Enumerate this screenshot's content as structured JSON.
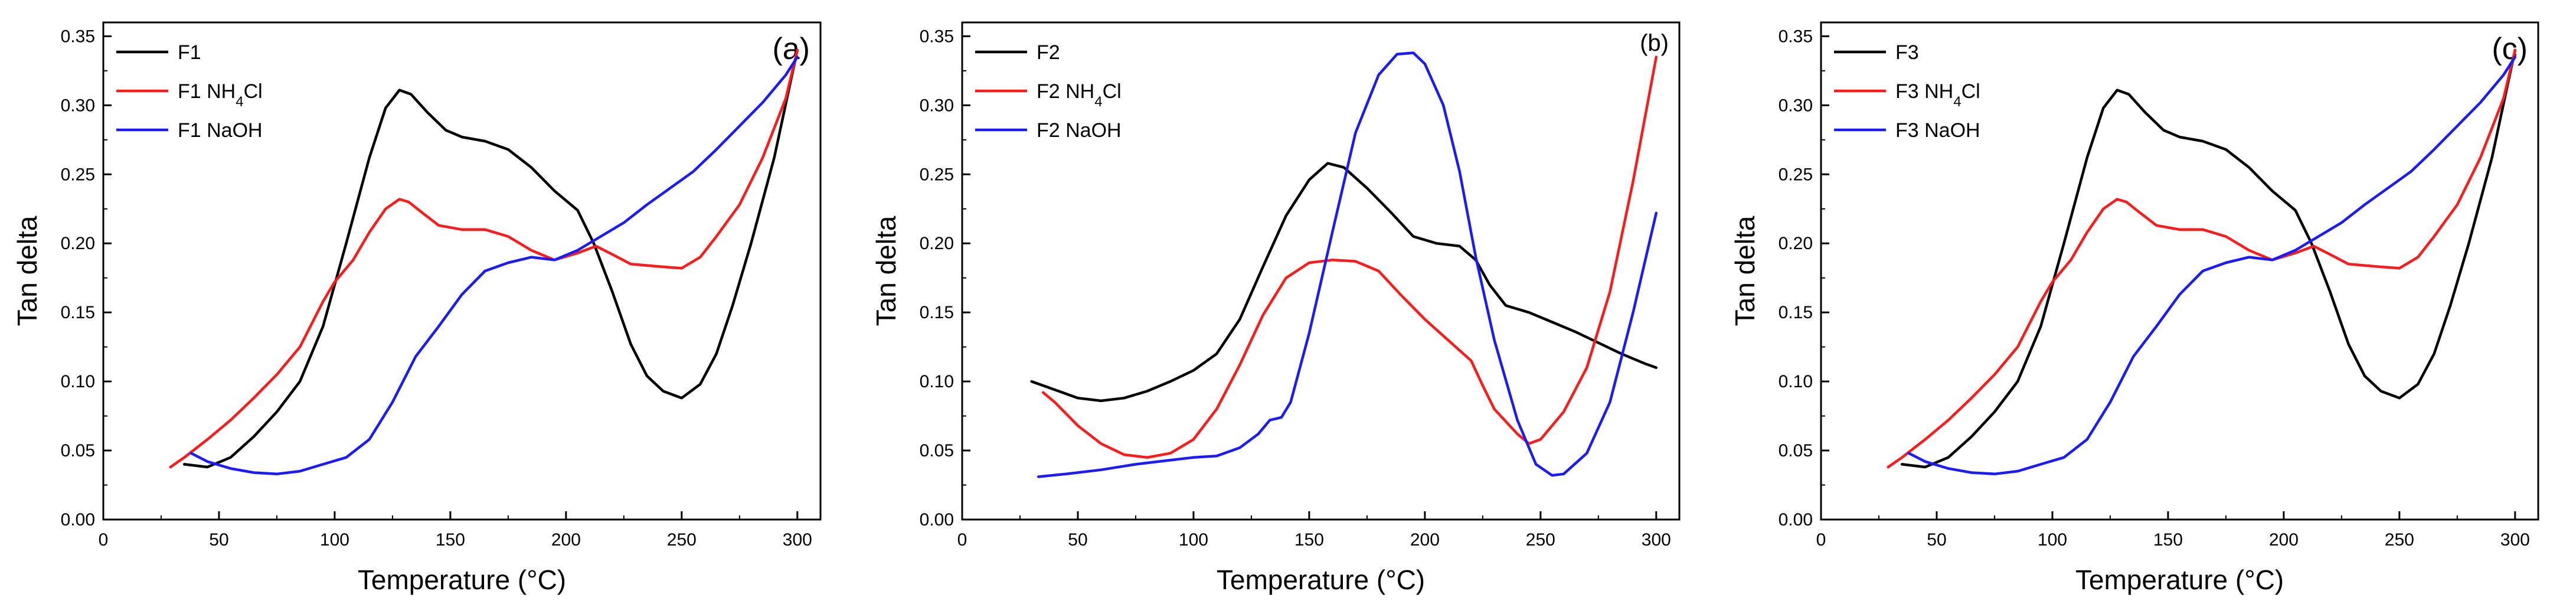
{
  "chart_data": [
    {
      "type": "line",
      "panel_label": "(a)",
      "xlabel": "Temperature (°C)",
      "ylabel": "Tan delta",
      "xlim": [
        0,
        310
      ],
      "ylim": [
        0,
        0.36
      ],
      "xticks": [
        0,
        50,
        100,
        150,
        200,
        250,
        300
      ],
      "xtick_labels": [
        "0",
        "50",
        "100",
        "150",
        "200",
        "250",
        "300"
      ],
      "yticks": [
        0,
        0.05,
        0.1,
        0.15,
        0.2,
        0.25,
        0.3,
        0.35
      ],
      "ytick_labels": [
        "0.00",
        "0.05",
        "0.10",
        "0.15",
        "0.20",
        "0.25",
        "0.30",
        "0.35"
      ],
      "legend_position": "top-left",
      "series": [
        {
          "name": "F1",
          "name_main": "F1",
          "name_sub": "",
          "name_tail": "",
          "color": "#000000",
          "x": [
            35,
            45,
            55,
            65,
            75,
            85,
            95,
            105,
            115,
            122,
            128,
            133,
            140,
            148,
            155,
            165,
            175,
            185,
            195,
            205,
            212,
            220,
            228,
            235,
            242,
            250,
            258,
            265,
            272,
            280,
            290,
            300
          ],
          "y": [
            0.04,
            0.038,
            0.045,
            0.06,
            0.078,
            0.1,
            0.14,
            0.2,
            0.262,
            0.298,
            0.311,
            0.308,
            0.295,
            0.282,
            0.277,
            0.274,
            0.268,
            0.255,
            0.238,
            0.224,
            0.2,
            0.165,
            0.127,
            0.104,
            0.093,
            0.088,
            0.098,
            0.12,
            0.155,
            0.2,
            0.262,
            0.34
          ]
        },
        {
          "name": "F1 NH4Cl",
          "name_main": "F1 NH",
          "name_sub": "4",
          "name_tail": "Cl",
          "color": "#ff1a1a",
          "x": [
            29,
            35,
            45,
            55,
            65,
            75,
            85,
            95,
            100,
            108,
            115,
            122,
            128,
            132,
            138,
            145,
            155,
            165,
            175,
            185,
            195,
            205,
            213,
            220,
            228,
            235,
            242,
            250,
            258,
            265,
            275,
            285,
            295,
            300
          ],
          "y": [
            0.038,
            0.045,
            0.058,
            0.072,
            0.088,
            0.105,
            0.125,
            0.158,
            0.172,
            0.188,
            0.208,
            0.225,
            0.232,
            0.23,
            0.222,
            0.213,
            0.21,
            0.21,
            0.205,
            0.195,
            0.188,
            0.193,
            0.198,
            0.192,
            0.185,
            0.184,
            0.183,
            0.182,
            0.19,
            0.205,
            0.228,
            0.262,
            0.305,
            0.34
          ]
        },
        {
          "name": "F1 NaOH",
          "name_main": "F1 NaOH",
          "name_sub": "",
          "name_tail": "",
          "color": "#1a1aff",
          "x": [
            38,
            45,
            55,
            65,
            75,
            85,
            95,
            105,
            115,
            125,
            135,
            145,
            155,
            165,
            175,
            185,
            195,
            205,
            215,
            225,
            235,
            245,
            255,
            265,
            275,
            285,
            295,
            300
          ],
          "y": [
            0.048,
            0.042,
            0.037,
            0.034,
            0.033,
            0.035,
            0.04,
            0.045,
            0.058,
            0.085,
            0.118,
            0.14,
            0.163,
            0.18,
            0.186,
            0.19,
            0.188,
            0.195,
            0.205,
            0.215,
            0.228,
            0.24,
            0.252,
            0.268,
            0.285,
            0.302,
            0.322,
            0.335
          ]
        }
      ]
    },
    {
      "type": "line",
      "panel_label": "(b)",
      "xlabel": "Temperature (°C)",
      "ylabel": "Tan delta",
      "xlim": [
        0,
        310
      ],
      "ylim": [
        0,
        0.36
      ],
      "xticks": [
        0,
        50,
        100,
        150,
        200,
        250,
        300
      ],
      "xtick_labels": [
        "0",
        "50",
        "100",
        "150",
        "200",
        "250",
        "300"
      ],
      "yticks": [
        0,
        0.05,
        0.1,
        0.15,
        0.2,
        0.25,
        0.3,
        0.35
      ],
      "ytick_labels": [
        "0.00",
        "0.05",
        "0.10",
        "0.15",
        "0.20",
        "0.25",
        "0.30",
        "0.35"
      ],
      "legend_position": "top-left",
      "series": [
        {
          "name": "F2",
          "name_main": "F2",
          "name_sub": "",
          "name_tail": "",
          "color": "#000000",
          "x": [
            30,
            40,
            50,
            60,
            70,
            80,
            90,
            100,
            110,
            120,
            130,
            140,
            150,
            158,
            165,
            175,
            185,
            195,
            205,
            215,
            222,
            228,
            235,
            245,
            255,
            265,
            275,
            285,
            295,
            300
          ],
          "y": [
            0.1,
            0.094,
            0.088,
            0.086,
            0.088,
            0.093,
            0.1,
            0.108,
            0.12,
            0.145,
            0.183,
            0.22,
            0.246,
            0.258,
            0.255,
            0.24,
            0.223,
            0.205,
            0.2,
            0.198,
            0.188,
            0.17,
            0.155,
            0.15,
            0.143,
            0.136,
            0.128,
            0.12,
            0.113,
            0.11
          ]
        },
        {
          "name": "F2 NH4Cl",
          "name_main": "F2 NH",
          "name_sub": "4",
          "name_tail": "Cl",
          "color": "#ff1a1a",
          "x": [
            35,
            40,
            50,
            60,
            70,
            80,
            90,
            100,
            110,
            120,
            130,
            140,
            150,
            160,
            170,
            180,
            190,
            200,
            210,
            220,
            225,
            230,
            240,
            245,
            250,
            260,
            270,
            280,
            290,
            300
          ],
          "y": [
            0.092,
            0.085,
            0.068,
            0.055,
            0.047,
            0.045,
            0.048,
            0.058,
            0.08,
            0.112,
            0.148,
            0.175,
            0.186,
            0.188,
            0.187,
            0.18,
            0.162,
            0.145,
            0.13,
            0.115,
            0.097,
            0.08,
            0.062,
            0.055,
            0.058,
            0.078,
            0.11,
            0.165,
            0.245,
            0.335
          ]
        },
        {
          "name": "F2 NaOH",
          "name_main": "F2 NaOH",
          "name_sub": "",
          "name_tail": "",
          "color": "#1a1aff",
          "x": [
            33,
            45,
            60,
            75,
            90,
            100,
            110,
            120,
            128,
            133,
            138,
            142,
            150,
            160,
            170,
            180,
            188,
            195,
            200,
            208,
            215,
            222,
            230,
            240,
            248,
            255,
            260,
            270,
            280,
            290,
            300
          ],
          "y": [
            0.031,
            0.033,
            0.036,
            0.04,
            0.043,
            0.045,
            0.046,
            0.052,
            0.062,
            0.072,
            0.074,
            0.085,
            0.135,
            0.208,
            0.28,
            0.322,
            0.337,
            0.338,
            0.33,
            0.3,
            0.252,
            0.19,
            0.13,
            0.072,
            0.04,
            0.032,
            0.033,
            0.048,
            0.085,
            0.15,
            0.222
          ]
        }
      ]
    },
    {
      "type": "line",
      "panel_label": "(c)",
      "xlabel": "Temperature (°C)",
      "ylabel": "Tan delta",
      "xlim": [
        0,
        310
      ],
      "ylim": [
        0,
        0.36
      ],
      "xticks": [
        0,
        50,
        100,
        150,
        200,
        250,
        300
      ],
      "xtick_labels": [
        "0",
        "50",
        "100",
        "150",
        "200",
        "250",
        "300"
      ],
      "yticks": [
        0,
        0.05,
        0.1,
        0.15,
        0.2,
        0.25,
        0.3,
        0.35
      ],
      "ytick_labels": [
        "0.00",
        "0.05",
        "0.10",
        "0.15",
        "0.20",
        "0.25",
        "0.30",
        "0.35"
      ],
      "legend_position": "top-left",
      "series": [
        {
          "name": "F3",
          "name_main": "F3",
          "name_sub": "",
          "name_tail": "",
          "color": "#000000",
          "x": [
            35,
            45,
            55,
            65,
            75,
            85,
            95,
            105,
            115,
            122,
            128,
            133,
            140,
            148,
            155,
            165,
            175,
            185,
            195,
            205,
            212,
            220,
            228,
            235,
            242,
            250,
            258,
            265,
            272,
            280,
            290,
            300
          ],
          "y": [
            0.04,
            0.038,
            0.045,
            0.06,
            0.078,
            0.1,
            0.14,
            0.2,
            0.262,
            0.298,
            0.311,
            0.308,
            0.295,
            0.282,
            0.277,
            0.274,
            0.268,
            0.255,
            0.238,
            0.224,
            0.2,
            0.165,
            0.127,
            0.104,
            0.093,
            0.088,
            0.098,
            0.12,
            0.155,
            0.2,
            0.262,
            0.34
          ]
        },
        {
          "name": "F3 NH4Cl",
          "name_main": "F3 NH",
          "name_sub": "4",
          "name_tail": "Cl",
          "color": "#ff1a1a",
          "x": [
            29,
            35,
            45,
            55,
            65,
            75,
            85,
            95,
            100,
            108,
            115,
            122,
            128,
            132,
            138,
            145,
            155,
            165,
            175,
            185,
            195,
            205,
            213,
            220,
            228,
            235,
            242,
            250,
            258,
            265,
            275,
            285,
            295,
            300
          ],
          "y": [
            0.038,
            0.045,
            0.058,
            0.072,
            0.088,
            0.105,
            0.125,
            0.158,
            0.172,
            0.188,
            0.208,
            0.225,
            0.232,
            0.23,
            0.222,
            0.213,
            0.21,
            0.21,
            0.205,
            0.195,
            0.188,
            0.193,
            0.198,
            0.192,
            0.185,
            0.184,
            0.183,
            0.182,
            0.19,
            0.205,
            0.228,
            0.262,
            0.305,
            0.34
          ]
        },
        {
          "name": "F3 NaOH",
          "name_main": "F3 NaOH",
          "name_sub": "",
          "name_tail": "",
          "color": "#1a1aff",
          "x": [
            38,
            45,
            55,
            65,
            75,
            85,
            95,
            105,
            115,
            125,
            135,
            145,
            155,
            165,
            175,
            185,
            195,
            205,
            215,
            225,
            235,
            245,
            255,
            265,
            275,
            285,
            295,
            300
          ],
          "y": [
            0.048,
            0.042,
            0.037,
            0.034,
            0.033,
            0.035,
            0.04,
            0.045,
            0.058,
            0.085,
            0.118,
            0.14,
            0.163,
            0.18,
            0.186,
            0.19,
            0.188,
            0.195,
            0.205,
            0.215,
            0.228,
            0.24,
            0.252,
            0.268,
            0.285,
            0.302,
            0.322,
            0.335
          ]
        }
      ]
    }
  ]
}
